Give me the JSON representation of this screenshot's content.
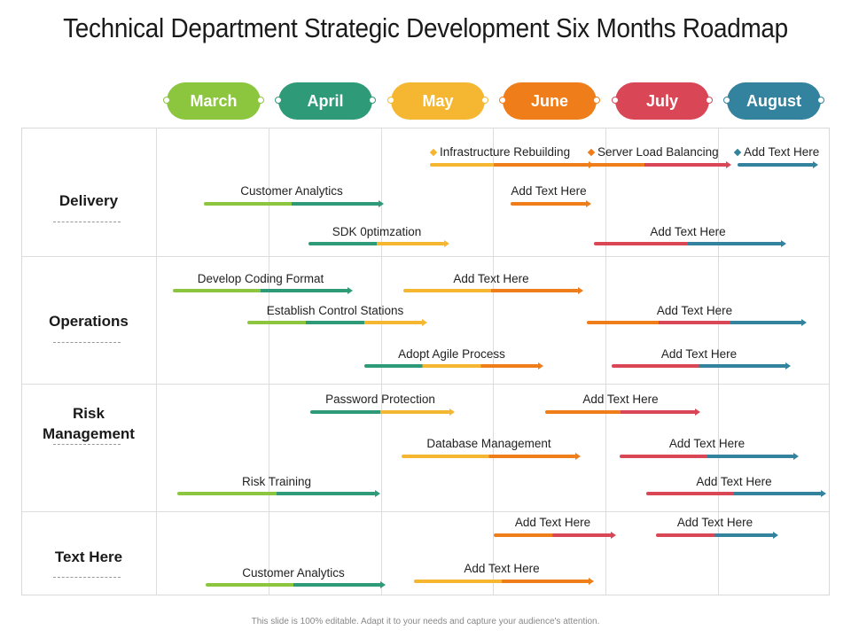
{
  "title": "Technical Department Strategic Development Six Months Roadmap",
  "colors": {
    "green": "#8cc63f",
    "teal": "#2f9a78",
    "yellow": "#f5b731",
    "orange": "#ef7d1a",
    "red": "#d94756",
    "blue": "#33829e"
  },
  "months": [
    {
      "label": "March",
      "color": "#8cc63f"
    },
    {
      "label": "April",
      "color": "#2f9a78"
    },
    {
      "label": "May",
      "color": "#f5b731"
    },
    {
      "label": "June",
      "color": "#ef7d1a"
    },
    {
      "label": "July",
      "color": "#d94756"
    },
    {
      "label": "August",
      "color": "#33829e"
    }
  ],
  "rows": [
    {
      "label": "Delivery"
    },
    {
      "label": "Operations"
    },
    {
      "label": "Risk\nManagement"
    },
    {
      "label": "Text Here"
    }
  ],
  "legend": [
    {
      "label": "Infrastructure Rebuilding",
      "color": "#f5b731"
    },
    {
      "label": "Server Load Balancing",
      "color": "#ef7d1a"
    },
    {
      "label": "Add Text Here",
      "color": "#33829e"
    }
  ],
  "tasks": [
    {
      "label": "Customer Analytics",
      "start": "March",
      "end": "April",
      "row": "Delivery"
    },
    {
      "label": "Add Text Here",
      "start": "June",
      "end": "June",
      "row": "Delivery"
    },
    {
      "label": "SDK 0ptimzation",
      "start": "April",
      "end": "May",
      "row": "Delivery"
    },
    {
      "label": "Add Text Here",
      "start": "July",
      "end": "August",
      "row": "Delivery"
    },
    {
      "label": "Develop Coding Format",
      "start": "March",
      "end": "April",
      "row": "Operations"
    },
    {
      "label": "Add Text Here",
      "start": "May",
      "end": "June",
      "row": "Operations"
    },
    {
      "label": "Establish Control Stations",
      "start": "March",
      "end": "May",
      "row": "Operations"
    },
    {
      "label": "Add Text Here",
      "start": "June",
      "end": "August",
      "row": "Operations"
    },
    {
      "label": "Adopt Agile Process",
      "start": "April",
      "end": "June",
      "row": "Operations"
    },
    {
      "label": "Add Text Here",
      "start": "July",
      "end": "August",
      "row": "Operations"
    },
    {
      "label": "Password Protection",
      "start": "April",
      "end": "May",
      "row": "Risk Management"
    },
    {
      "label": "Add Text Here",
      "start": "June",
      "end": "July",
      "row": "Risk Management"
    },
    {
      "label": "Database Management",
      "start": "May",
      "end": "June",
      "row": "Risk Management"
    },
    {
      "label": "Add Text Here",
      "start": "July",
      "end": "August",
      "row": "Risk Management"
    },
    {
      "label": "Risk Training",
      "start": "March",
      "end": "April",
      "row": "Risk Management"
    },
    {
      "label": "Add Text Here",
      "start": "July",
      "end": "August",
      "row": "Risk Management"
    },
    {
      "label": "Add Text Here",
      "start": "June",
      "end": "July",
      "row": "Text Here"
    },
    {
      "label": "Add Text Here",
      "start": "July",
      "end": "August",
      "row": "Text Here"
    },
    {
      "label": "Customer Analytics",
      "start": "March",
      "end": "April",
      "row": "Text Here"
    },
    {
      "label": "Add Text Here",
      "start": "May",
      "end": "June",
      "row": "Text Here"
    }
  ],
  "footer": "This slide is 100% editable. Adapt it to your needs and capture your audience's attention."
}
